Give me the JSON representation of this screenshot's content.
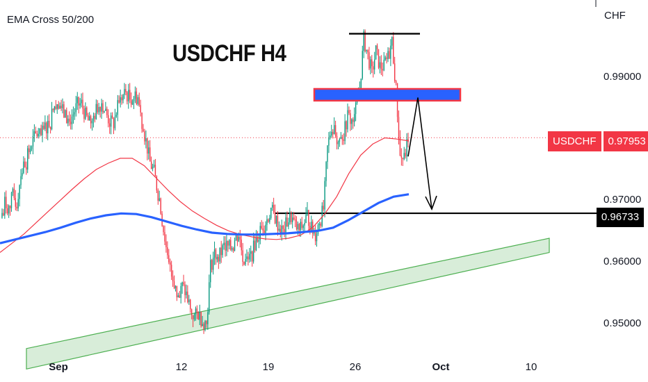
{
  "chart_data": {
    "type": "candlestick",
    "title": "USDCHF H4",
    "indicator": "EMA Cross 50/200",
    "symbol": "USDCHF",
    "currency": "CHF",
    "last_price": "0.97953",
    "level_price": "0.96733",
    "ylim": [
      0.9475,
      0.9995
    ],
    "yticks": [
      "0.99000",
      "0.98000",
      "0.97000",
      "0.96000",
      "0.95000"
    ],
    "xticks": [
      {
        "label": "Sep",
        "bold": true
      },
      {
        "label": "12",
        "bold": false
      },
      {
        "label": "19",
        "bold": false
      },
      {
        "label": "26",
        "bold": false
      },
      {
        "label": "Oct",
        "bold": true
      },
      {
        "label": "10",
        "bold": false
      }
    ],
    "colors": {
      "up": "#089981",
      "down": "#f23645",
      "ema50": "#f23645",
      "ema200": "#2962ff",
      "support_zone": "#4caf50",
      "resistance_zone_fill": "#2962ff",
      "resistance_zone_border": "#f23645"
    },
    "price_path": [
      0.9666,
      0.969,
      0.9681,
      0.9701,
      0.9688,
      0.974,
      0.9755,
      0.9772,
      0.9791,
      0.9802,
      0.9797,
      0.9812,
      0.982,
      0.984,
      0.9858,
      0.9842,
      0.983,
      0.982,
      0.9834,
      0.9848,
      0.985,
      0.9831,
      0.9818,
      0.9828,
      0.9845,
      0.9852,
      0.9836,
      0.982,
      0.9818,
      0.9845,
      0.986,
      0.9868,
      0.9858,
      0.9862,
      0.9861,
      0.982,
      0.979,
      0.9755,
      0.974,
      0.9705,
      0.9662,
      0.9618,
      0.9592,
      0.956,
      0.9535,
      0.9555,
      0.9542,
      0.9515,
      0.9506,
      0.9512,
      0.95,
      0.9495,
      0.9588,
      0.9608,
      0.9602,
      0.9615,
      0.962,
      0.9616,
      0.963,
      0.964,
      0.9604,
      0.9592,
      0.96,
      0.9625,
      0.964,
      0.9655,
      0.9662,
      0.968,
      0.9666,
      0.965,
      0.9643,
      0.966,
      0.9668,
      0.9652,
      0.9645,
      0.9655,
      0.967,
      0.9648,
      0.964,
      0.966,
      0.968,
      0.9778,
      0.9815,
      0.98,
      0.9782,
      0.98,
      0.983,
      0.9822,
      0.984,
      0.9875,
      0.9955,
      0.9928,
      0.99,
      0.9935,
      0.991,
      0.991,
      0.9925,
      0.995,
      0.9872,
      0.9765,
      0.976,
      0.9795
    ],
    "ema50_path": [
      0.961,
      0.9625,
      0.964,
      0.9658,
      0.9676,
      0.9694,
      0.9712,
      0.9729,
      0.9744,
      0.9754,
      0.9762,
      0.9762,
      0.975,
      0.973,
      0.971,
      0.9692,
      0.9677,
      0.9665,
      0.9654,
      0.9645,
      0.9639,
      0.9635,
      0.9632,
      0.9631,
      0.9633,
      0.9638,
      0.965,
      0.9672,
      0.97,
      0.9737,
      0.9767,
      0.9785,
      0.9795,
      0.9793,
      0.979
    ],
    "ema200_path": [
      0.9625,
      0.9631,
      0.9637,
      0.9643,
      0.965,
      0.9658,
      0.9665,
      0.967,
      0.9673,
      0.9672,
      0.9667,
      0.966,
      0.9653,
      0.9647,
      0.9642,
      0.964,
      0.9639,
      0.9639,
      0.964,
      0.9641,
      0.9643,
      0.9645,
      0.965,
      0.9662,
      0.9676,
      0.969,
      0.97,
      0.9704
    ],
    "support_zone": {
      "lower_left": 0.9422,
      "upper_left": 0.9455,
      "lower_right": 0.961,
      "upper_right": 0.9633
    },
    "resistance_zone": {
      "top": 0.9874,
      "bottom": 0.9855
    },
    "resistance_line": 0.9963,
    "projection_path": [
      0.9765,
      0.986,
      0.968
    ]
  }
}
